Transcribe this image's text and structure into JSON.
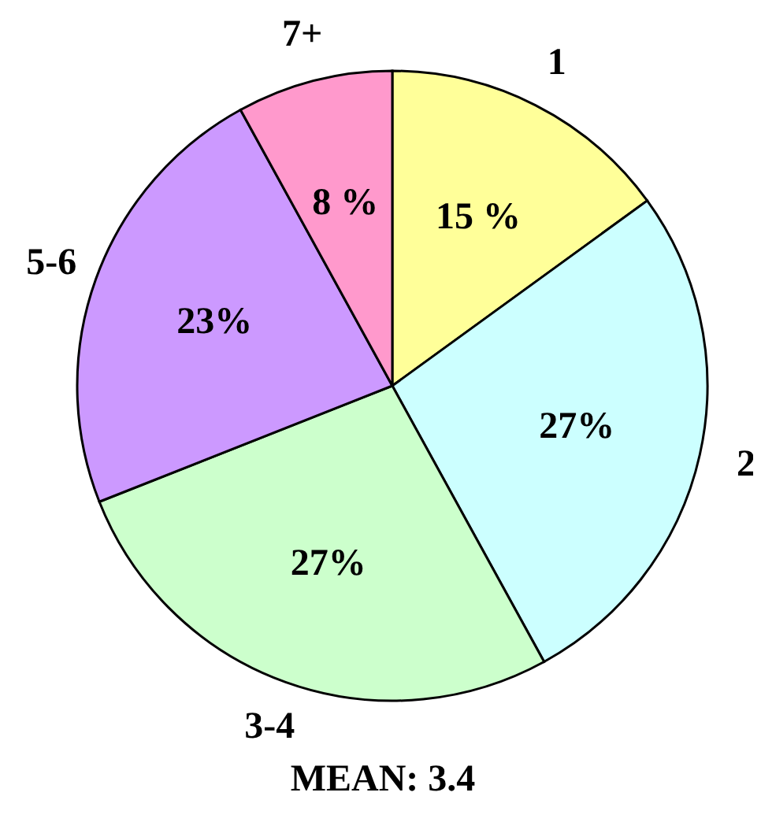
{
  "chart_data": {
    "type": "pie",
    "categories": [
      "1",
      "2",
      "3-4",
      "5-6",
      "7+"
    ],
    "values": [
      15,
      27,
      27,
      23,
      8
    ],
    "value_labels": [
      "15 %",
      "27%",
      "27%",
      "23%",
      "8 %"
    ],
    "colors": [
      "#ffff99",
      "#ccffff",
      "#ccffcc",
      "#cc99ff",
      "#ff99cc"
    ],
    "legend": false,
    "annotations": [
      "MEAN: 3.4"
    ]
  }
}
